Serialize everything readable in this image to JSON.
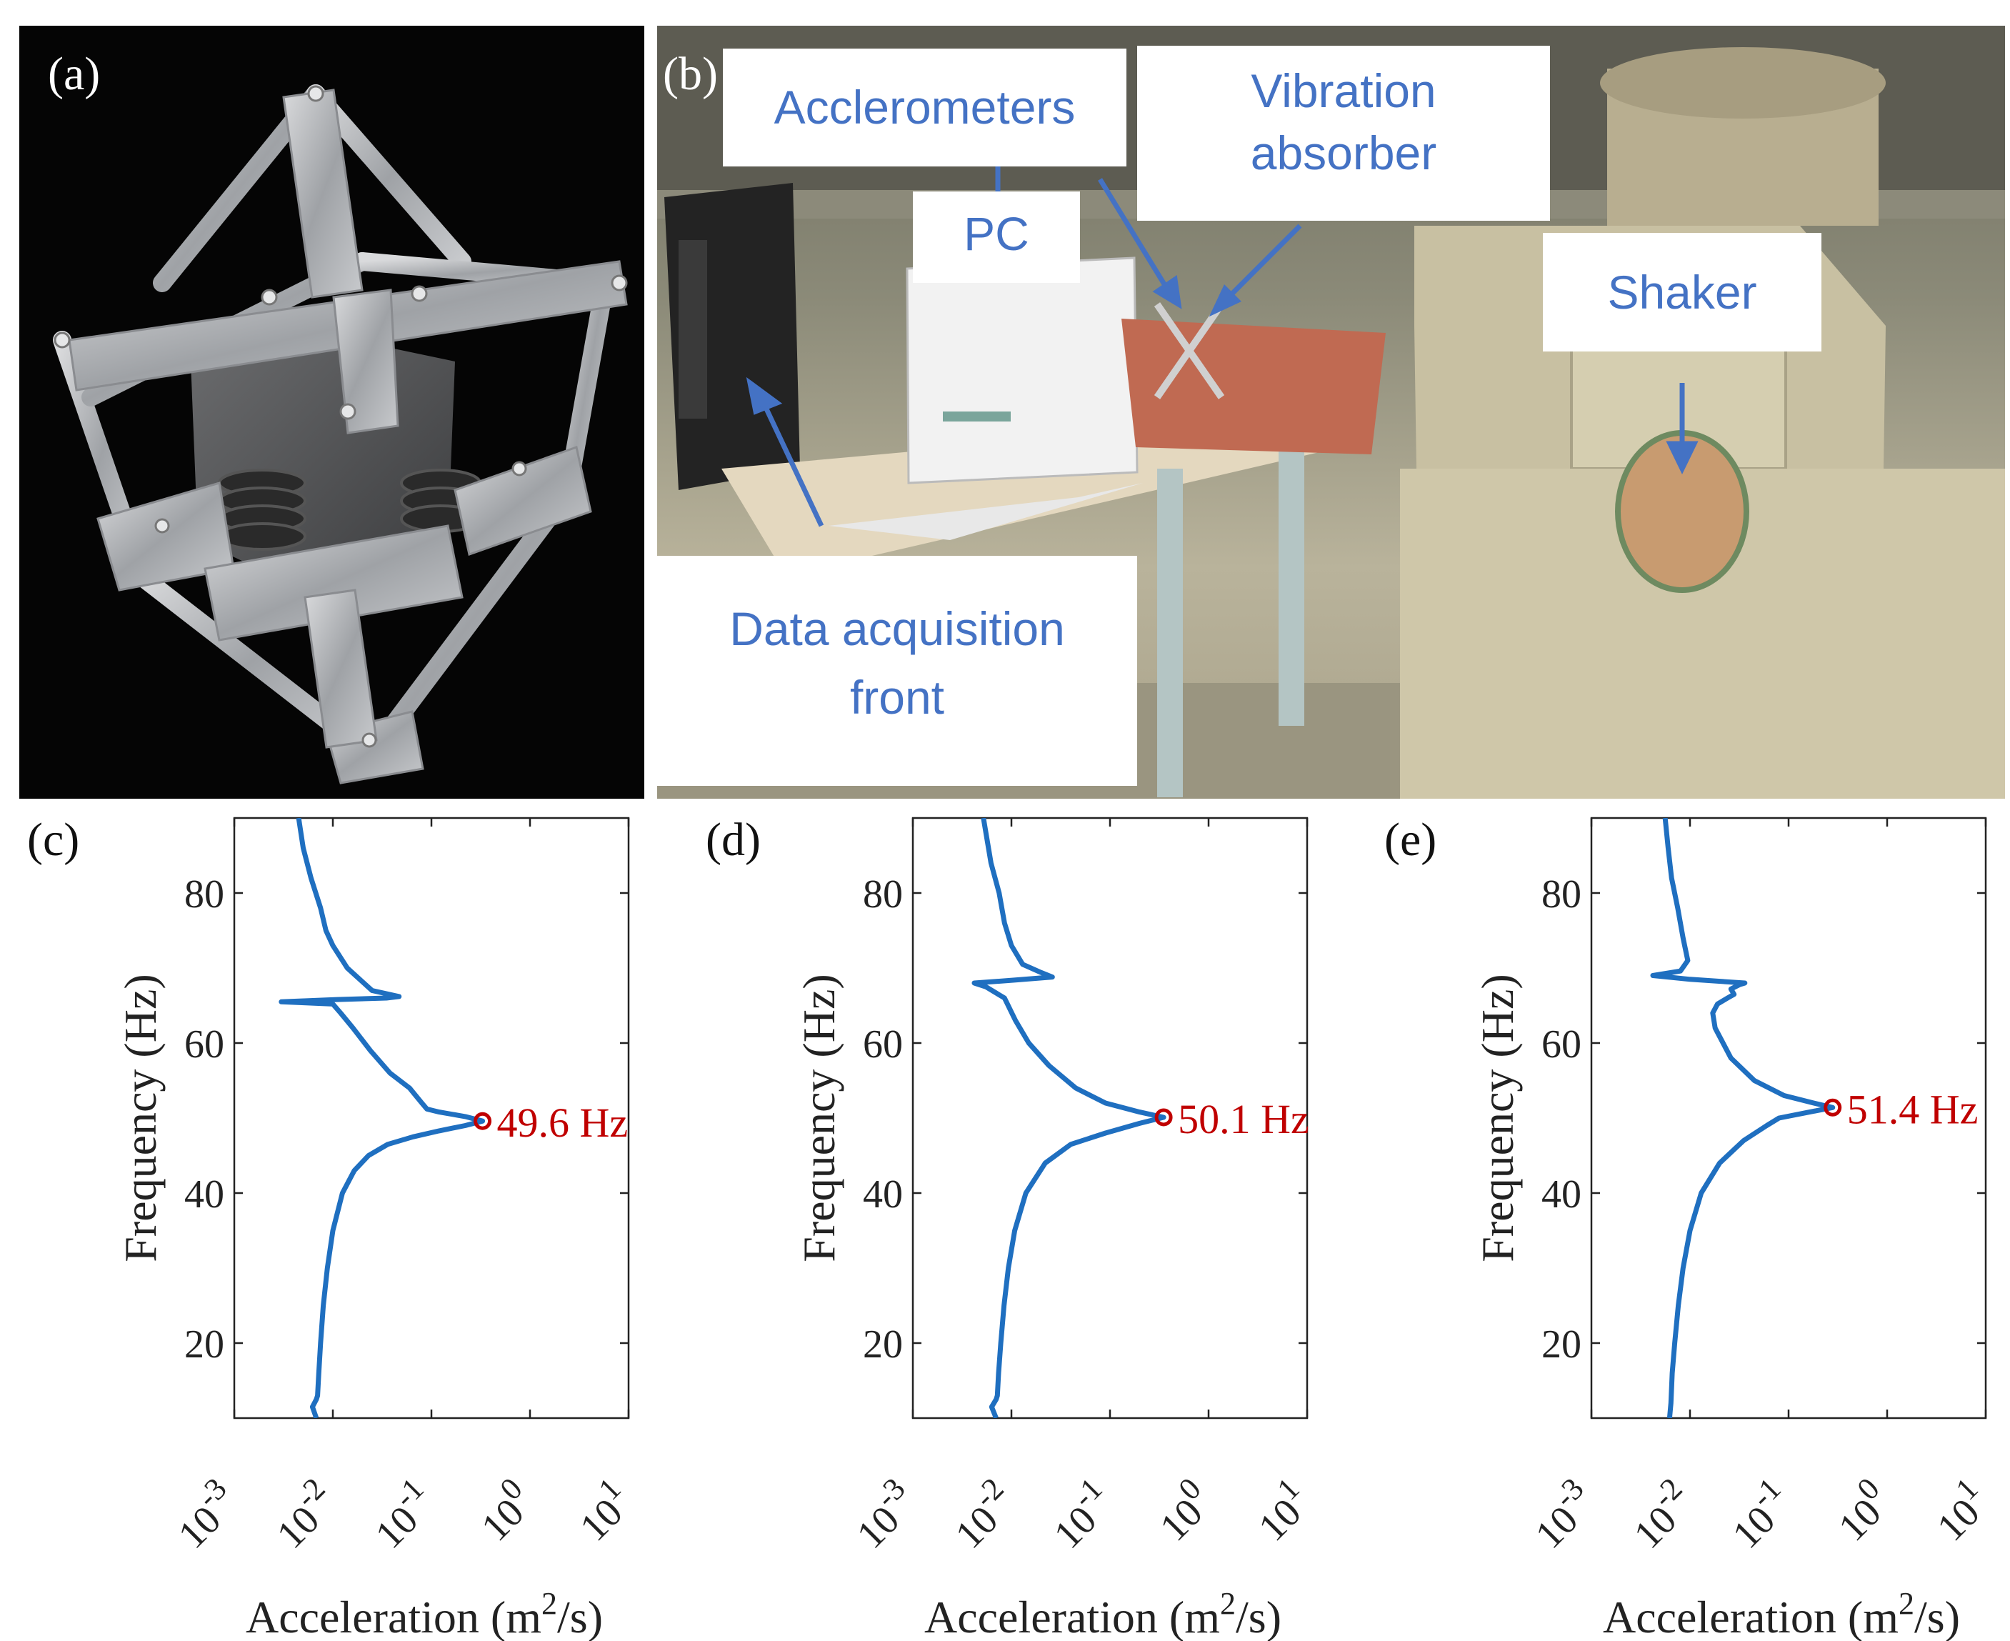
{
  "photo_a": {
    "label": "(a)"
  },
  "photo_b": {
    "label": "(b)",
    "callouts": {
      "accelerometers": "Acclerometers",
      "vibration_absorber_line1": "Vibration",
      "vibration_absorber_line2": "absorber",
      "pc": "PC",
      "shaker": "Shaker",
      "daq_line1": "Data acquisition",
      "daq_line2": "front"
    }
  },
  "colors": {
    "curve": "#1f6fc0",
    "marker": "#c00000",
    "callout_text": "#4472c4",
    "arrow": "#4472c4"
  },
  "chart_data": [
    {
      "label": "(c)",
      "type": "line",
      "xlabel": "Acceleration  (m²/s)",
      "ylabel": "Frequency (Hz)",
      "xscale": "log",
      "xlim": [
        0.001,
        10
      ],
      "ylim": [
        10,
        90
      ],
      "xticks": [
        0.001,
        0.01,
        0.1,
        1,
        10
      ],
      "xtick_labels": [
        "10⁻³",
        "10⁻²",
        "10⁻¹",
        "10⁰",
        "10¹"
      ],
      "yticks": [
        20,
        40,
        60,
        80
      ],
      "series": [
        {
          "points": [
            [
              0.0068,
              10
            ],
            [
              0.0062,
              11.5
            ],
            [
              0.0068,
              12.5
            ],
            [
              0.007,
              13
            ],
            [
              0.0072,
              16
            ],
            [
              0.0075,
              20
            ],
            [
              0.008,
              25
            ],
            [
              0.0088,
              30
            ],
            [
              0.01,
              35
            ],
            [
              0.0125,
              40
            ],
            [
              0.0165,
              43
            ],
            [
              0.023,
              45
            ],
            [
              0.036,
              46.5
            ],
            [
              0.065,
              47.5
            ],
            [
              0.12,
              48.3
            ],
            [
              0.22,
              49
            ],
            [
              0.33,
              49.6
            ],
            [
              0.22,
              50.2
            ],
            [
              0.12,
              50.8
            ],
            [
              0.09,
              51.2
            ],
            [
              0.08,
              52
            ],
            [
              0.06,
              54
            ],
            [
              0.038,
              56
            ],
            [
              0.024,
              59
            ],
            [
              0.016,
              62
            ],
            [
              0.012,
              64
            ],
            [
              0.01,
              65.2
            ],
            [
              0.003,
              65.5
            ],
            [
              0.011,
              65.8
            ],
            [
              0.035,
              66
            ],
            [
              0.047,
              66.2
            ],
            [
              0.025,
              67
            ],
            [
              0.014,
              70
            ],
            [
              0.01,
              73
            ],
            [
              0.0085,
              75
            ],
            [
              0.0075,
              78
            ],
            [
              0.006,
              82
            ],
            [
              0.005,
              86
            ],
            [
              0.0045,
              90
            ]
          ]
        }
      ],
      "marker": {
        "x": 0.33,
        "y": 49.6,
        "label": "49.6 Hz"
      }
    },
    {
      "label": "(d)",
      "type": "line",
      "xlabel": "Acceleration  (m²/s)",
      "ylabel": "Frequency (Hz)",
      "xscale": "log",
      "xlim": [
        0.001,
        10
      ],
      "ylim": [
        10,
        90
      ],
      "xticks": [
        0.001,
        0.01,
        0.1,
        1,
        10
      ],
      "xtick_labels": [
        "10⁻³",
        "10⁻²",
        "10⁻¹",
        "10⁰",
        "10¹"
      ],
      "yticks": [
        20,
        40,
        60,
        80
      ],
      "series": [
        {
          "points": [
            [
              0.007,
              10
            ],
            [
              0.0063,
              11.5
            ],
            [
              0.007,
              12.5
            ],
            [
              0.0072,
              13
            ],
            [
              0.0074,
              16
            ],
            [
              0.0078,
              20
            ],
            [
              0.0084,
              25
            ],
            [
              0.0093,
              30
            ],
            [
              0.0108,
              35
            ],
            [
              0.014,
              40
            ],
            [
              0.022,
              44
            ],
            [
              0.04,
              46.5
            ],
            [
              0.09,
              48
            ],
            [
              0.2,
              49.3
            ],
            [
              0.35,
              50.1
            ],
            [
              0.2,
              50.8
            ],
            [
              0.09,
              52
            ],
            [
              0.045,
              54
            ],
            [
              0.024,
              57
            ],
            [
              0.015,
              60
            ],
            [
              0.011,
              63
            ],
            [
              0.0085,
              66
            ],
            [
              0.0055,
              67.5
            ],
            [
              0.0042,
              68
            ],
            [
              0.011,
              68.4
            ],
            [
              0.026,
              68.8
            ],
            [
              0.02,
              69.4
            ],
            [
              0.013,
              70.5
            ],
            [
              0.01,
              73
            ],
            [
              0.0085,
              76
            ],
            [
              0.0075,
              80
            ],
            [
              0.0062,
              84
            ],
            [
              0.0052,
              90
            ]
          ]
        }
      ],
      "marker": {
        "x": 0.35,
        "y": 50.1,
        "label": "50.1 Hz"
      }
    },
    {
      "label": "(e)",
      "type": "line",
      "xlabel": "Acceleration  (m²/s)",
      "ylabel": "Frequency (Hz)",
      "xscale": "log",
      "xlim": [
        0.001,
        10
      ],
      "ylim": [
        10,
        90
      ],
      "xticks": [
        0.001,
        0.01,
        0.1,
        1,
        10
      ],
      "xtick_labels": [
        "10⁻³",
        "10⁻²",
        "10⁻¹",
        "10⁰",
        "10¹"
      ],
      "yticks": [
        20,
        40,
        60,
        80
      ],
      "series": [
        {
          "points": [
            [
              0.0062,
              10
            ],
            [
              0.0064,
              12
            ],
            [
              0.0066,
              16
            ],
            [
              0.007,
              20
            ],
            [
              0.0076,
              25
            ],
            [
              0.0085,
              30
            ],
            [
              0.01,
              35
            ],
            [
              0.013,
              40
            ],
            [
              0.02,
              44
            ],
            [
              0.035,
              47
            ],
            [
              0.06,
              49
            ],
            [
              0.08,
              50
            ],
            [
              0.15,
              50.7
            ],
            [
              0.28,
              51.4
            ],
            [
              0.18,
              52
            ],
            [
              0.09,
              53
            ],
            [
              0.045,
              55
            ],
            [
              0.026,
              58
            ],
            [
              0.018,
              62
            ],
            [
              0.017,
              64
            ],
            [
              0.019,
              65.2
            ],
            [
              0.024,
              66
            ],
            [
              0.028,
              66.5
            ],
            [
              0.026,
              67.2
            ],
            [
              0.032,
              67.8
            ],
            [
              0.036,
              68
            ],
            [
              0.01,
              68.5
            ],
            [
              0.0042,
              69
            ],
            [
              0.008,
              69.6
            ],
            [
              0.0095,
              71
            ],
            [
              0.0085,
              74
            ],
            [
              0.0075,
              78
            ],
            [
              0.0065,
              82
            ],
            [
              0.006,
              86
            ],
            [
              0.0056,
              90
            ]
          ]
        }
      ],
      "marker": {
        "x": 0.28,
        "y": 51.4,
        "label": "51.4 Hz"
      }
    }
  ]
}
